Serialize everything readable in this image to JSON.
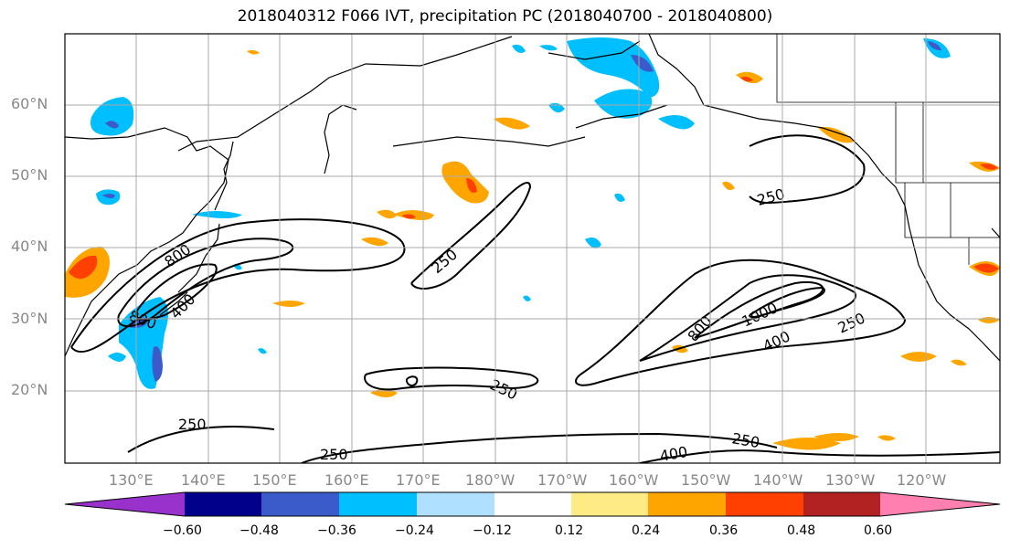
{
  "title": "2018040312 F066 IVT, precipitation PC (2018040700 - 2018040800)",
  "lat_labels": [
    "60°N",
    "50°N",
    "40°N",
    "30°N",
    "20°N"
  ],
  "lon_labels": [
    "130°E",
    "140°E",
    "150°E",
    "160°E",
    "170°E",
    "180°W",
    "170°W",
    "160°W",
    "150°W",
    "140°W",
    "130°W",
    "120°W"
  ],
  "ivt_contour_labels": [
    "250",
    "250",
    "250",
    "250",
    "250",
    "250",
    "250",
    "400",
    "400",
    "400",
    "800",
    "800",
    "800",
    "1000",
    "250",
    "400",
    "800",
    "1000"
  ],
  "colorbar": {
    "colors": [
      "#9932cc",
      "#00008b",
      "#3a5bc9",
      "#00bfff",
      "#b0e0ff",
      "#ffffff",
      "#ffeb85",
      "#ffa500",
      "#ff4000",
      "#b22222",
      "#ff80b0"
    ],
    "ticks": [
      "−0.60",
      "−0.48",
      "−0.36",
      "−0.24",
      "−0.12",
      "0.12",
      "0.24",
      "0.36",
      "0.48",
      "0.60"
    ]
  }
}
